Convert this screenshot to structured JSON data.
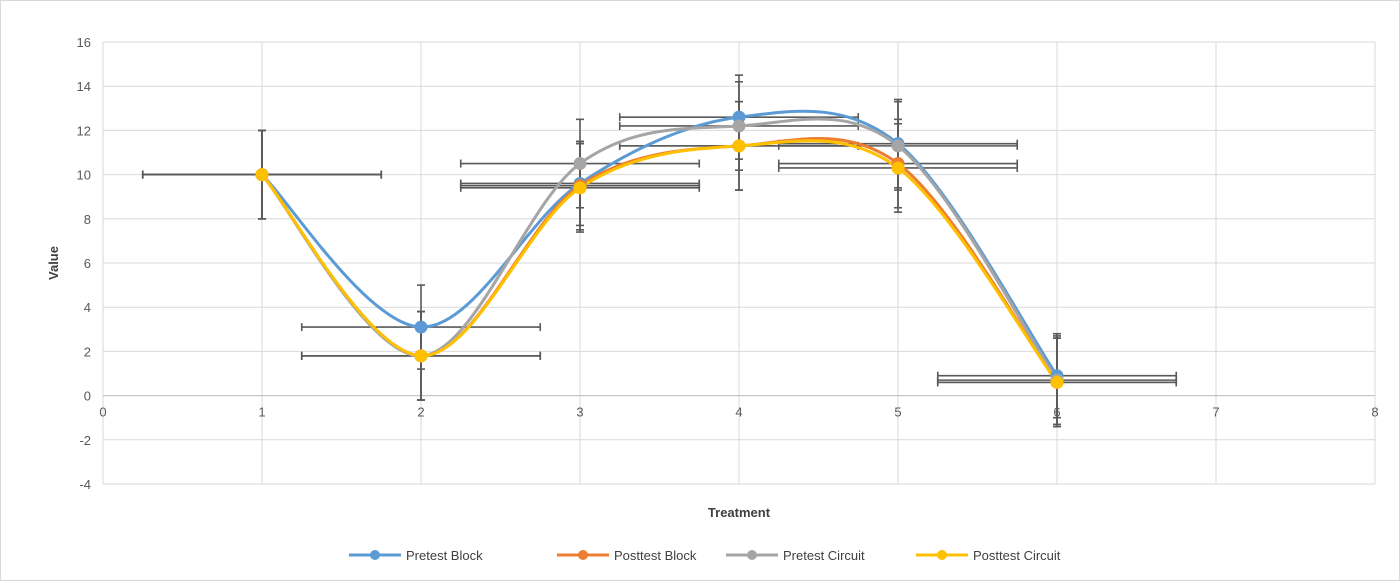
{
  "chart_data": {
    "type": "scatter",
    "title": "",
    "xlabel": "Treatment",
    "ylabel": "Value",
    "xlim": [
      0,
      8
    ],
    "ylim": [
      -4,
      16
    ],
    "x_ticks": [
      0,
      1,
      2,
      3,
      4,
      5,
      6,
      7,
      8
    ],
    "y_ticks": [
      -4,
      -2,
      0,
      2,
      4,
      6,
      8,
      10,
      12,
      14,
      16
    ],
    "grid": "vertical and horizontal major gridlines",
    "smoothed_lines": true,
    "legend_position": "bottom",
    "series": [
      {
        "name": "Pretest Block",
        "color": "#5b9bd5",
        "x": [
          1,
          2,
          3,
          4,
          5,
          6
        ],
        "y": [
          10,
          3.1,
          9.6,
          12.6,
          11.4,
          0.9
        ],
        "y_err": [
          2,
          1.9,
          1.9,
          1.9,
          2.0,
          1.9
        ],
        "x_err": [
          0.75,
          0.75,
          0.75,
          0.75,
          0.75,
          0.75
        ]
      },
      {
        "name": "Posttest Block",
        "color": "#ed7d31",
        "x": [
          1,
          2,
          3,
          4,
          5,
          6
        ],
        "y": [
          10,
          1.8,
          9.5,
          11.3,
          10.5,
          0.6
        ],
        "y_err": [
          2,
          2.0,
          2.0,
          2.0,
          2.0,
          2.0
        ],
        "x_err": [
          0.75,
          0.75,
          0.75,
          0.75,
          0.75,
          0.75
        ]
      },
      {
        "name": "Pretest Circuit",
        "color": "#a5a5a5",
        "x": [
          1,
          2,
          3,
          4,
          5,
          6
        ],
        "y": [
          10,
          1.8,
          10.5,
          12.2,
          11.3,
          0.7
        ],
        "y_err": [
          2,
          2.0,
          2.0,
          2.0,
          2.0,
          2.0
        ],
        "x_err": [
          0.75,
          0.75,
          0.75,
          0.75,
          0.75,
          0.75
        ]
      },
      {
        "name": "Posttest Circuit",
        "color": "#ffc000",
        "x": [
          1,
          2,
          3,
          4,
          5,
          6
        ],
        "y": [
          10,
          1.8,
          9.4,
          11.3,
          10.3,
          0.6
        ],
        "y_err": [
          2,
          2.0,
          2.0,
          2.0,
          2.0,
          2.0
        ],
        "x_err": [
          0.75,
          0.75,
          0.75,
          0.75,
          0.75,
          0.75
        ]
      }
    ]
  }
}
